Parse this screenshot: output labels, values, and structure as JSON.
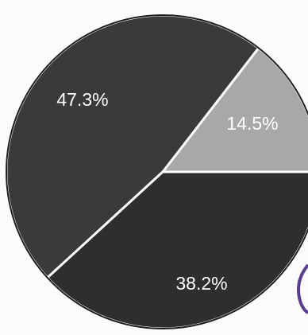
{
  "chart_data": {
    "type": "pie",
    "title": "",
    "slices": [
      {
        "label": "47.3%",
        "value": 47.3,
        "color": "#3a3a3a"
      },
      {
        "label": "14.5%",
        "value": 14.5,
        "color": "#a8a8a8"
      },
      {
        "label": "38.2%",
        "value": 38.2,
        "color": "#2e2e2e"
      }
    ],
    "legend": "none"
  },
  "colors": {
    "background": "#fbfbfb",
    "slice_border": "#ffffff",
    "accent_artifact": "#5a3f8c"
  }
}
